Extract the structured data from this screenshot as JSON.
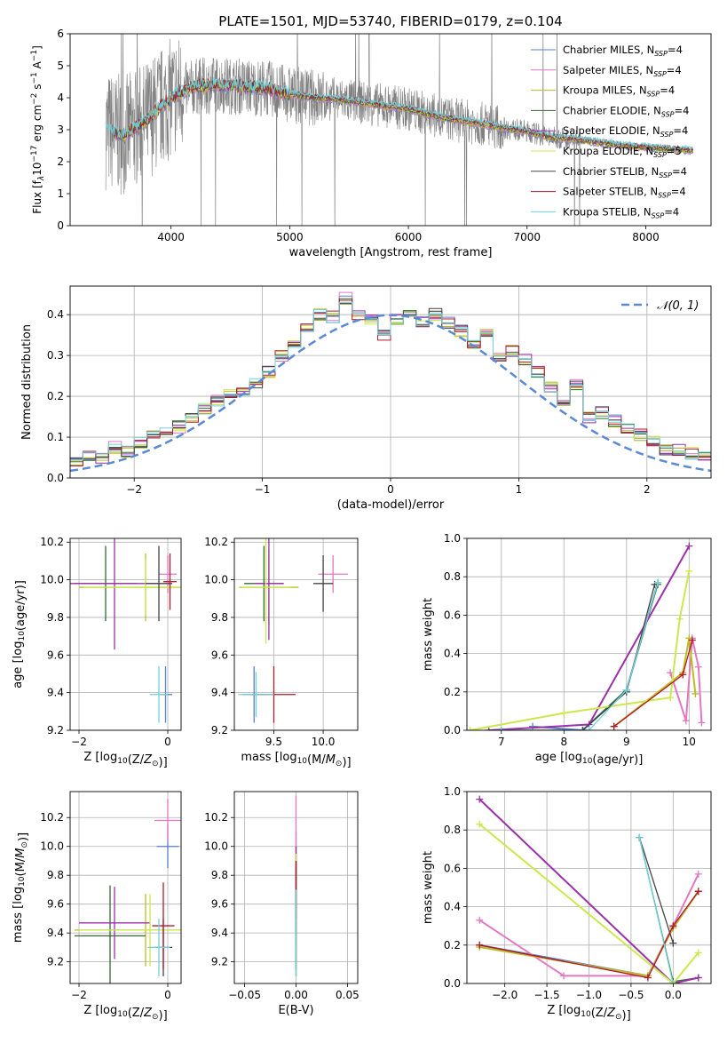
{
  "figure": {
    "title": "PLATE=1501, MJD=53740, FIBERID=0179, z=0.104"
  },
  "series_styles": [
    {
      "name": "Chabrier MILES",
      "nssp": "4",
      "color": "#5b7fc7"
    },
    {
      "name": "Salpeter MILES",
      "nssp": "4",
      "color": "#e377c2"
    },
    {
      "name": "Kroupa MILES",
      "nssp": "4",
      "color": "#bcbd22"
    },
    {
      "name": "Chabrier ELODIE",
      "nssp": "4",
      "color": "#2f6b2f"
    },
    {
      "name": "Salpeter ELODIE",
      "nssp": "4",
      "color": "#9b30a8"
    },
    {
      "name": "Kroupa ELODIE",
      "nssp": "5",
      "color": "#cbe84e"
    },
    {
      "name": "Chabrier STELIB",
      "nssp": "4",
      "color": "#444444"
    },
    {
      "name": "Salpeter STELIB",
      "nssp": "4",
      "color": "#b2182b"
    },
    {
      "name": "Kroupa STELIB",
      "nssp": "4",
      "color": "#6fd3d8"
    }
  ],
  "chart_data": [
    {
      "id": "spectrum",
      "type": "line",
      "xlabel": "wavelength [Angstrom, rest frame]",
      "ylabel_parts": [
        "Flux [f",
        "λ",
        "10",
        "−17",
        " erg cm",
        "−2",
        " s",
        "−1",
        " A",
        "−1",
        "]"
      ],
      "xlim": [
        3150,
        8550
      ],
      "ylim": [
        0,
        6
      ],
      "xticks": [
        4000,
        5000,
        6000,
        7000,
        8000
      ],
      "yticks": [
        0,
        1,
        2,
        3,
        4,
        5,
        6
      ],
      "legend_position": "right",
      "legend_suffix": "N",
      "legend_sub": "SSP",
      "data_color": "#808080",
      "model_key": {
        "x": [
          3450,
          3600,
          3800,
          4000,
          4200,
          4400,
          4600,
          4800,
          5000,
          5200,
          5400,
          5600,
          5800,
          6000,
          6200,
          6400,
          6600,
          6800,
          7000,
          7200,
          7400,
          7600,
          7800,
          8000,
          8200,
          8400
        ],
        "y": [
          3.0,
          2.8,
          3.3,
          4.0,
          4.35,
          4.4,
          4.35,
          4.3,
          4.1,
          4.0,
          3.95,
          3.85,
          3.75,
          3.65,
          3.45,
          3.3,
          3.2,
          3.05,
          2.95,
          2.75,
          2.7,
          2.6,
          2.5,
          2.45,
          2.4,
          2.35
        ]
      }
    },
    {
      "id": "residuals",
      "type": "step",
      "xlabel": "(data-model)/error",
      "ylabel": "Normed distribution",
      "xlim": [
        -2.5,
        2.5
      ],
      "ylim": [
        0,
        0.47
      ],
      "xticks": [
        -2,
        -1,
        0,
        1,
        2
      ],
      "yticks": [
        0.0,
        0.1,
        0.2,
        0.3,
        0.4
      ],
      "bin_width": 0.1,
      "base_hist": [
        0.01,
        0.035,
        0.03,
        0.035,
        0.055,
        0.05,
        0.075,
        0.065,
        0.085,
        0.105,
        0.115,
        0.125,
        0.15,
        0.17,
        0.19,
        0.205,
        0.215,
        0.23,
        0.26,
        0.3,
        0.33,
        0.37,
        0.4,
        0.395,
        0.44,
        0.4,
        0.39,
        0.35,
        0.39,
        0.41,
        0.38,
        0.4,
        0.38,
        0.36,
        0.33,
        0.35,
        0.3,
        0.31,
        0.29,
        0.26,
        0.22,
        0.19,
        0.23,
        0.15,
        0.16,
        0.14,
        0.12,
        0.105,
        0.09,
        0.07,
        0.07,
        0.06,
        0.05,
        0.045,
        0.04,
        0.05,
        0.03,
        0.03
      ],
      "gauss_label": "𝒩(0, 1)",
      "gauss_color": "#5a8ad6",
      "legend_position": "top-right"
    },
    {
      "id": "age_vs_z",
      "type": "errorbar",
      "xlabel": "Z [log10(Z/Z⊙)]",
      "ylabel": "age [log10(age/yr)]",
      "xlim": [
        -2.2,
        0.3
      ],
      "ylim": [
        9.2,
        10.22
      ],
      "xticks": [
        -2,
        0
      ],
      "yticks": [
        9.2,
        9.4,
        9.6,
        9.8,
        10.0,
        10.2
      ],
      "points": [
        {
          "s": 0,
          "x": -0.05,
          "y": 9.39,
          "xe": 0.15,
          "ye": 0.15
        },
        {
          "s": 1,
          "x": 0.0,
          "y": 10.03,
          "xe": 0.2,
          "ye": 0.1
        },
        {
          "s": 2,
          "x": -0.5,
          "y": 9.96,
          "xe": 1.5,
          "ye": 0.18
        },
        {
          "s": 3,
          "x": -1.4,
          "y": 9.98,
          "xe": 0.7,
          "ye": 0.2
        },
        {
          "s": 4,
          "x": -1.2,
          "y": 9.98,
          "xe": 1.0,
          "ye": 0.35
        },
        {
          "s": 5,
          "x": -0.5,
          "y": 9.96,
          "xe": 1.4,
          "ye": 0.15
        },
        {
          "s": 6,
          "x": -0.2,
          "y": 9.98,
          "xe": 0.3,
          "ye": 0.2
        },
        {
          "s": 7,
          "x": 0.05,
          "y": 9.99,
          "xe": 0.15,
          "ye": 0.15
        },
        {
          "s": 8,
          "x": -0.2,
          "y": 9.39,
          "xe": 0.2,
          "ye": 0.15
        }
      ]
    },
    {
      "id": "age_vs_mass",
      "type": "errorbar",
      "xlabel": "mass [log10(M/M⊙)]",
      "ylabel": "",
      "xlim": [
        9.1,
        10.35
      ],
      "ylim": [
        9.2,
        10.22
      ],
      "xticks": [
        9.5,
        10.0
      ],
      "yticks": [
        9.2,
        9.4,
        9.6,
        9.8,
        10.0,
        10.2
      ],
      "points": [
        {
          "s": 0,
          "x": 9.3,
          "y": 9.39,
          "xe": 0.12,
          "ye": 0.15
        },
        {
          "s": 1,
          "x": 10.1,
          "y": 10.03,
          "xe": 0.15,
          "ye": 0.1
        },
        {
          "s": 2,
          "x": 9.45,
          "y": 9.96,
          "xe": 0.3,
          "ye": 0.2
        },
        {
          "s": 3,
          "x": 9.4,
          "y": 9.98,
          "xe": 0.2,
          "ye": 0.2
        },
        {
          "s": 4,
          "x": 9.45,
          "y": 9.98,
          "xe": 0.15,
          "ye": 0.3
        },
        {
          "s": 5,
          "x": 9.42,
          "y": 9.96,
          "xe": 0.25,
          "ye": 0.3
        },
        {
          "s": 6,
          "x": 10.0,
          "y": 9.98,
          "xe": 0.1,
          "ye": 0.15
        },
        {
          "s": 7,
          "x": 9.5,
          "y": 9.39,
          "xe": 0.22,
          "ye": 0.15
        },
        {
          "s": 8,
          "x": 9.32,
          "y": 9.39,
          "xe": 0.18,
          "ye": 0.12
        }
      ]
    },
    {
      "id": "mw_vs_age",
      "type": "line",
      "xlabel": "age [log10(age/yr)]",
      "ylabel": "mass weight",
      "xlim": [
        6.45,
        10.35
      ],
      "ylim": [
        0,
        1
      ],
      "xticks": [
        7,
        8,
        9,
        10
      ],
      "yticks": [
        0.0,
        0.2,
        0.4,
        0.6,
        0.8,
        1.0
      ],
      "lines": [
        {
          "s": 0,
          "x": [
            7.5,
            8.3,
            9.0,
            9.5
          ],
          "y": [
            0.02,
            0.0,
            0.21,
            0.77
          ]
        },
        {
          "s": 1,
          "x": [
            9.7,
            9.95,
            10.05,
            10.15,
            10.2
          ],
          "y": [
            0.3,
            0.05,
            0.48,
            0.33,
            0.04
          ]
        },
        {
          "s": 2,
          "x": [
            8.8,
            9.9,
            10.0,
            10.1
          ],
          "y": [
            0.02,
            0.3,
            0.48,
            0.19
          ]
        },
        {
          "s": 3,
          "x": [
            6.8,
            8.3,
            9.0,
            9.5
          ],
          "y": [
            0.0,
            0.0,
            0.21,
            0.76
          ]
        },
        {
          "s": 4,
          "x": [
            6.8,
            8.4,
            10.0
          ],
          "y": [
            0.0,
            0.03,
            0.96
          ]
        },
        {
          "s": 5,
          "x": [
            6.5,
            8.0,
            9.7,
            9.85,
            10.0
          ],
          "y": [
            0.0,
            0.09,
            0.17,
            0.58,
            0.83
          ]
        },
        {
          "s": 6,
          "x": [
            7.0,
            8.3,
            9.0,
            9.45
          ],
          "y": [
            0.0,
            0.0,
            0.2,
            0.76
          ]
        },
        {
          "s": 7,
          "x": [
            8.8,
            9.9,
            10.05
          ],
          "y": [
            0.02,
            0.29,
            0.47
          ]
        },
        {
          "s": 8,
          "x": [
            7.0,
            8.4,
            9.0,
            9.5
          ],
          "y": [
            0.0,
            0.0,
            0.21,
            0.77
          ]
        }
      ]
    },
    {
      "id": "mass_vs_z",
      "type": "errorbar",
      "xlabel": "Z [log10(Z/Z⊙)]",
      "ylabel": "mass [log10(M/M⊙)]",
      "xlim": [
        -2.2,
        0.3
      ],
      "ylim": [
        9.05,
        10.38
      ],
      "xticks": [
        -2,
        0
      ],
      "yticks": [
        9.2,
        9.4,
        9.6,
        9.8,
        10.0,
        10.2
      ],
      "points": [
        {
          "s": 0,
          "x": 0.0,
          "y": 10.0,
          "xe": 0.25,
          "ye": 0.15
        },
        {
          "s": 1,
          "x": 0.0,
          "y": 10.18,
          "xe": 0.3,
          "ye": 0.15
        },
        {
          "s": 2,
          "x": -0.5,
          "y": 9.42,
          "xe": 1.6,
          "ye": 0.25
        },
        {
          "s": 3,
          "x": -1.3,
          "y": 9.38,
          "xe": 0.8,
          "ye": 0.35
        },
        {
          "s": 4,
          "x": -1.2,
          "y": 9.47,
          "xe": 0.8,
          "ye": 0.25
        },
        {
          "s": 5,
          "x": -0.4,
          "y": 9.42,
          "xe": 1.6,
          "ye": 0.25
        },
        {
          "s": 6,
          "x": -0.1,
          "y": 9.3,
          "xe": 0.2,
          "ye": 0.2
        },
        {
          "s": 7,
          "x": -0.1,
          "y": 9.45,
          "xe": 0.25,
          "ye": 0.3
        },
        {
          "s": 8,
          "x": -0.2,
          "y": 9.3,
          "xe": 0.25,
          "ye": 0.2
        }
      ]
    },
    {
      "id": "mass_vs_ebv",
      "type": "errorbar",
      "xlabel": "E(B-V)",
      "ylabel": "",
      "xlim": [
        -0.06,
        0.06
      ],
      "ylim": [
        9.05,
        10.38
      ],
      "xticks": [
        -0.05,
        0.0,
        0.05
      ],
      "yticks": [
        9.2,
        9.4,
        9.6,
        9.8,
        10.0,
        10.2
      ],
      "points": [
        {
          "s": 0,
          "x": 0.0,
          "y": 9.7,
          "xe": 0.0,
          "ye": 0.4
        },
        {
          "s": 1,
          "x": 0.0,
          "y": 10.0,
          "xe": 0.0,
          "ye": 0.35
        },
        {
          "s": 2,
          "x": 0.0,
          "y": 9.6,
          "xe": 0.0,
          "ye": 0.4
        },
        {
          "s": 3,
          "x": 0.0,
          "y": 9.5,
          "xe": 0.0,
          "ye": 0.35
        },
        {
          "s": 4,
          "x": 0.0,
          "y": 9.7,
          "xe": 0.0,
          "ye": 0.3
        },
        {
          "s": 5,
          "x": 0.0,
          "y": 9.6,
          "xe": 0.0,
          "ye": 0.35
        },
        {
          "s": 6,
          "x": 0.0,
          "y": 9.5,
          "xe": 0.0,
          "ye": 0.4
        },
        {
          "s": 7,
          "x": 0.0,
          "y": 9.7,
          "xe": 0.0,
          "ye": 0.2
        },
        {
          "s": 8,
          "x": 0.0,
          "y": 9.4,
          "xe": 0.0,
          "ye": 0.3
        }
      ]
    },
    {
      "id": "mw_vs_z",
      "type": "line",
      "xlabel": "Z [log10(Z/Z⊙)]",
      "ylabel": "mass weight",
      "xlim": [
        -2.45,
        0.45
      ],
      "ylim": [
        0,
        1
      ],
      "xticks": [
        -2.0,
        -1.5,
        -1.0,
        -0.5,
        0.0
      ],
      "yticks": [
        0.0,
        0.2,
        0.4,
        0.6,
        0.8,
        1.0
      ],
      "lines": [
        {
          "s": 0,
          "x": [
            -2.3,
            -0.3,
            0.0,
            0.3
          ],
          "y": [
            0.2,
            0.04,
            0.29,
            0.48
          ]
        },
        {
          "s": 1,
          "x": [
            -2.3,
            -1.3,
            -0.3,
            0.0,
            0.3
          ],
          "y": [
            0.33,
            0.04,
            0.04,
            0.3,
            0.57
          ]
        },
        {
          "s": 2,
          "x": [
            -2.3,
            -0.3,
            0.0,
            0.3
          ],
          "y": [
            0.19,
            0.04,
            0.29,
            0.48
          ]
        },
        {
          "s": 3,
          "x": [
            -0.4,
            0.0,
            0.3
          ],
          "y": [
            0.76,
            0.01,
            0.03
          ]
        },
        {
          "s": 4,
          "x": [
            -2.3,
            0.0,
            0.3
          ],
          "y": [
            0.96,
            0.0,
            0.03
          ]
        },
        {
          "s": 5,
          "x": [
            -2.3,
            0.0,
            0.3
          ],
          "y": [
            0.83,
            0.0,
            0.16
          ]
        },
        {
          "s": 6,
          "x": [
            -0.4,
            0.0
          ],
          "y": [
            0.76,
            0.21
          ]
        },
        {
          "s": 7,
          "x": [
            -2.3,
            -0.3,
            0.0,
            0.3
          ],
          "y": [
            0.2,
            0.03,
            0.3,
            0.48
          ]
        },
        {
          "s": 8,
          "x": [
            -0.4,
            0.0
          ],
          "y": [
            0.76,
            0.0
          ]
        }
      ]
    }
  ]
}
